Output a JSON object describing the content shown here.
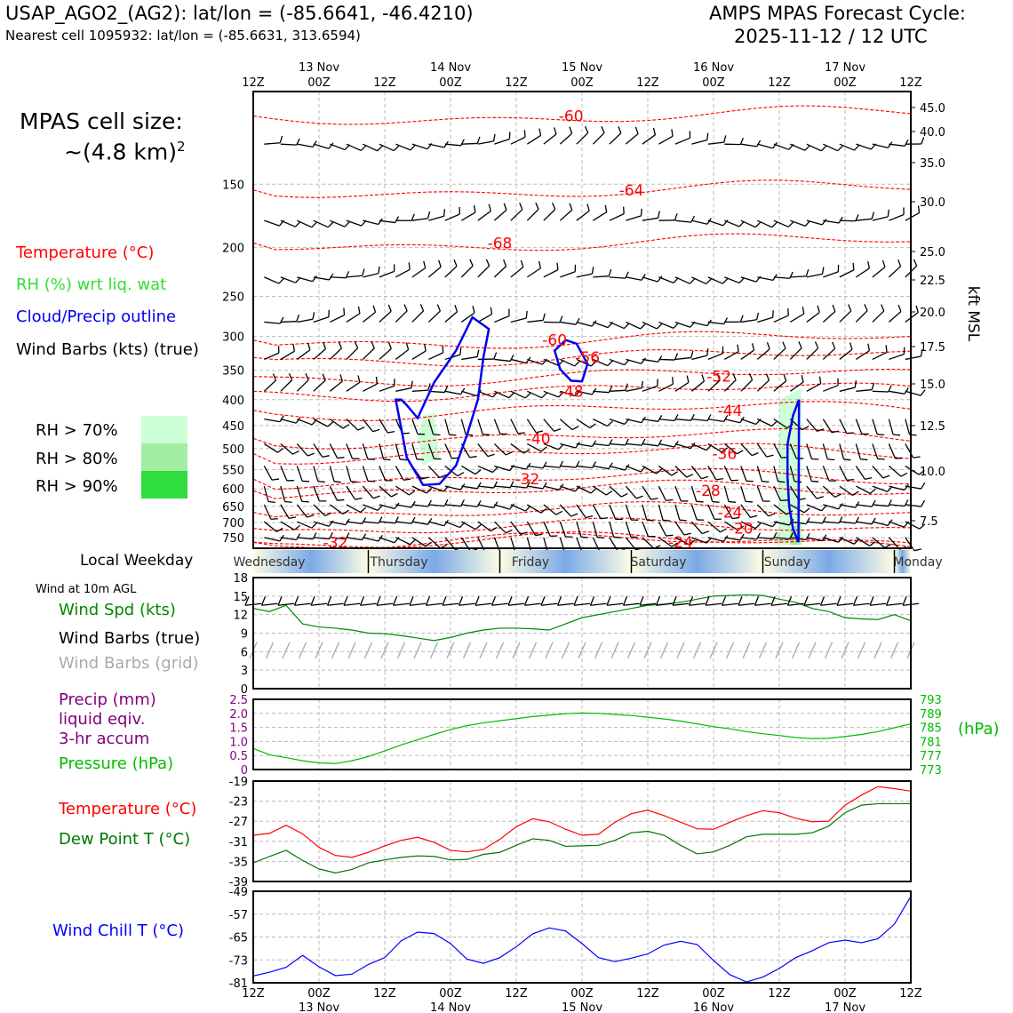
{
  "header": {
    "station": "USAP_AGO2_(AG2): lat/lon = (-85.6641, -46.4210)",
    "nearest": "Nearest cell 1095932: lat/lon = (-85.6631, 313.6594)",
    "cycle_line1": "AMPS MPAS Forecast Cycle:",
    "cycle_line2": "2025-11-12 / 12 UTC",
    "cell_size_line1": "MPAS cell size:",
    "cell_size_line2": "~(4.8 km)",
    "cell_size_sup": "2"
  },
  "legend": {
    "temperature": "Temperature (°C)",
    "rh": "RH (%) wrt liq. wat",
    "cloud": "Cloud/Precip outline",
    "wind": "Wind Barbs (kts) (true)",
    "rh_levels": [
      "RH > 70%",
      "RH > 80%",
      "RH > 90%"
    ],
    "rh_colors": [
      "#ccffd6",
      "#a2eea2",
      "#2fdd3e"
    ]
  },
  "colors": {
    "temperature": "#ff0000",
    "rh": "#33dd33",
    "cloud": "#0000ee",
    "wind_true": "#000000",
    "wind_grid": "#aaaaaa",
    "precip": "#800080",
    "pressure": "#00bb00",
    "dewpoint": "#007700",
    "windchill": "#0000ff"
  },
  "time_axis": {
    "hour_labels": [
      "12Z",
      "00Z",
      "12Z",
      "00Z",
      "12Z",
      "00Z",
      "12Z",
      "00Z",
      "12Z",
      "00Z",
      "12Z"
    ],
    "date_labels": [
      "13 Nov",
      "14 Nov",
      "15 Nov",
      "16 Nov",
      "17 Nov"
    ]
  },
  "weekday": {
    "label": "Local Weekday",
    "days": [
      "Wednesday",
      "Thursday",
      "Friday",
      "Saturday",
      "Sunday",
      "Monday"
    ]
  },
  "panels": {
    "wind10m": {
      "title": "Wind at 10m AGL",
      "labels": [
        "Wind Spd (kts)",
        "Wind Barbs (true)",
        "Wind Barbs (grid)"
      ]
    },
    "precip": {
      "labels": [
        "Precip (mm)",
        "liquid eqiv.",
        "3-hr accum",
        "Pressure (hPa)"
      ],
      "right_unit": "(hPa)"
    },
    "temp": {
      "labels": [
        "Temperature (°C)",
        "Dew Point T (°C)"
      ]
    },
    "windchill": {
      "label": "Wind Chill T (°C)"
    }
  },
  "chart_data": [
    {
      "type": "contour",
      "panel": "vertical_profile",
      "left_axis_ticks": [
        150,
        200,
        250,
        300,
        350,
        400,
        450,
        500,
        550,
        600,
        650,
        700,
        750
      ],
      "right_axis_ticks": [
        "45.0",
        "40.0",
        "35.0",
        "30.0",
        "25.0",
        "22.5",
        "20.0",
        "17.5",
        "15.0",
        "12.5",
        "10.0",
        "7.5"
      ],
      "right_axis_label": "kft MSL",
      "ylim_hpa": [
        775,
        100
      ],
      "temperature_contour_labels": [
        {
          "value": "-60",
          "time_h": 58,
          "p": 110
        },
        {
          "value": "-64",
          "time_h": 69,
          "p": 154
        },
        {
          "value": "-68",
          "time_h": 45,
          "p": 196
        },
        {
          "value": "-60",
          "time_h": 55,
          "p": 305
        },
        {
          "value": "-56",
          "time_h": 61,
          "p": 330
        },
        {
          "value": "-52",
          "time_h": 85,
          "p": 360
        },
        {
          "value": "-48",
          "time_h": 58,
          "p": 385
        },
        {
          "value": "-44",
          "time_h": 87,
          "p": 420
        },
        {
          "value": "-40",
          "time_h": 52,
          "p": 477
        },
        {
          "value": "-36",
          "time_h": 86,
          "p": 511
        },
        {
          "value": "-32",
          "time_h": 50,
          "p": 574
        },
        {
          "value": "-28",
          "time_h": 83,
          "p": 605
        },
        {
          "value": "-24",
          "time_h": 87,
          "p": 668
        },
        {
          "value": "-20",
          "time_h": 89,
          "p": 719
        },
        {
          "value": "-24",
          "time_h": 78,
          "p": 765
        },
        {
          "value": "-32",
          "time_h": 15,
          "p": 766
        }
      ],
      "cloud_outlines": [
        [
          [
            26,
            400
          ],
          [
            27,
            455
          ],
          [
            28,
            520
          ],
          [
            31,
            590
          ],
          [
            34,
            587
          ],
          [
            37,
            540
          ],
          [
            39,
            470
          ],
          [
            41,
            400
          ],
          [
            42,
            330
          ],
          [
            43,
            290
          ],
          [
            40,
            275
          ],
          [
            37,
            320
          ],
          [
            33,
            370
          ],
          [
            30,
            435
          ],
          [
            28,
            410
          ],
          [
            27,
            400
          ]
        ],
        [
          [
            55,
            320
          ],
          [
            56,
            348
          ],
          [
            58,
            367
          ],
          [
            60,
            368
          ],
          [
            61,
            340
          ],
          [
            59,
            310
          ],
          [
            57,
            305
          ]
        ],
        [
          [
            99.5,
            765
          ],
          [
            98.5,
            720
          ],
          [
            97.8,
            650
          ],
          [
            97.5,
            570
          ],
          [
            97.5,
            490
          ],
          [
            98.5,
            430
          ],
          [
            99.6,
            400
          ]
        ]
      ],
      "rh_shaded_regions": [
        {
          "level": "RH > 70%",
          "points": [
            [
              31,
              430
            ],
            [
              33,
              425
            ],
            [
              34,
              520
            ],
            [
              31,
              540
            ],
            [
              30,
              480
            ]
          ]
        },
        {
          "level": "RH > 70%",
          "points": [
            [
              96,
              400
            ],
            [
              100,
              380
            ],
            [
              100,
              775
            ],
            [
              95,
              775
            ],
            [
              96,
              700
            ]
          ]
        },
        {
          "level": "RH > 80%",
          "points": [
            [
              98,
              720
            ],
            [
              100,
              700
            ],
            [
              100,
              775
            ],
            [
              98,
              775
            ]
          ]
        }
      ]
    },
    {
      "type": "line",
      "panel": "wind_10m",
      "ylim": [
        0,
        18
      ],
      "y_ticks": [
        0,
        3,
        6,
        9,
        12,
        15,
        18
      ],
      "series": [
        {
          "name": "Wind Spd (kts)",
          "x": [
            0,
            3,
            6,
            9,
            12,
            15,
            18,
            21,
            24,
            27,
            30,
            33,
            36,
            39,
            42,
            45,
            48,
            51,
            54,
            57,
            60,
            63,
            66,
            69,
            72,
            75,
            78,
            81,
            84,
            87,
            90,
            93,
            96,
            99,
            102,
            105,
            108,
            111,
            114,
            117,
            120
          ],
          "values": [
            13,
            12.5,
            13.5,
            10.5,
            10,
            9.8,
            9.5,
            9,
            8.9,
            8.6,
            8.2,
            7.8,
            8.3,
            9,
            9.5,
            9.8,
            9.8,
            9.7,
            9.5,
            10.5,
            11.5,
            12,
            12.5,
            13,
            13.5,
            13.7,
            14,
            14.5,
            15,
            15.1,
            15.2,
            15.1,
            14.5,
            14,
            13,
            12.5,
            11.5,
            11.3,
            11.2,
            12,
            11
          ]
        }
      ]
    },
    {
      "type": "line",
      "panel": "precip_pressure",
      "left_ylim": [
        0,
        2.5
      ],
      "left_y_ticks": [
        "0",
        "0.5",
        "1.0",
        "1.5",
        "2.0",
        "2.5"
      ],
      "right_ylim": [
        773,
        793
      ],
      "right_y_ticks": [
        "773",
        "777",
        "781",
        "785",
        "789",
        "793"
      ],
      "series": [
        {
          "name": "Pressure (hPa)",
          "x": [
            0,
            3,
            6,
            9,
            12,
            15,
            18,
            21,
            24,
            27,
            30,
            33,
            36,
            39,
            42,
            45,
            48,
            51,
            54,
            57,
            60,
            63,
            66,
            69,
            72,
            75,
            78,
            81,
            84,
            87,
            90,
            93,
            96,
            99,
            102,
            105,
            108,
            111,
            114,
            117,
            120
          ],
          "values": [
            779,
            777.2,
            776.4,
            775.5,
            774.9,
            774.7,
            775.5,
            776.7,
            778.3,
            780,
            781.5,
            783,
            784.4,
            785.5,
            786.3,
            786.9,
            787.5,
            788.1,
            788.5,
            788.9,
            789.1,
            789,
            788.7,
            788.4,
            787.9,
            787.4,
            786.8,
            786,
            785.2,
            784.6,
            783.8,
            783.2,
            782.7,
            782.1,
            781.8,
            781.9,
            782.4,
            783,
            783.8,
            784.9,
            786
          ]
        }
      ]
    },
    {
      "type": "line",
      "panel": "temperature_dewpoint",
      "ylim": [
        -39,
        -19
      ],
      "y_ticks": [
        -19,
        -23,
        -27,
        -31,
        -35,
        -39
      ],
      "series": [
        {
          "name": "Temperature (°C)",
          "x": [
            0,
            3,
            6,
            9,
            12,
            15,
            18,
            21,
            24,
            27,
            30,
            33,
            36,
            39,
            42,
            45,
            48,
            51,
            54,
            57,
            60,
            63,
            66,
            69,
            72,
            75,
            78,
            81,
            84,
            87,
            90,
            93,
            96,
            99,
            102,
            105,
            108,
            111,
            114,
            117,
            120
          ],
          "values": [
            -29.8,
            -29.4,
            -27.8,
            -29.5,
            -32.2,
            -33.8,
            -34.2,
            -33.2,
            -31.9,
            -30.8,
            -30.2,
            -31.2,
            -32.8,
            -33.1,
            -32.6,
            -30.6,
            -28.1,
            -26.5,
            -27.1,
            -28.6,
            -29.8,
            -29.6,
            -27.2,
            -25.5,
            -24.8,
            -25.9,
            -27.2,
            -28.5,
            -28.6,
            -27.2,
            -25.9,
            -24.9,
            -25.3,
            -26.4,
            -27.1,
            -27,
            -23.8,
            -21.8,
            -20.1,
            -20.5,
            -21
          ]
        },
        {
          "name": "Dew Point T (°C)",
          "x": [
            0,
            3,
            6,
            9,
            12,
            15,
            18,
            21,
            24,
            27,
            30,
            33,
            36,
            39,
            42,
            45,
            48,
            51,
            54,
            57,
            60,
            63,
            66,
            69,
            72,
            75,
            78,
            81,
            84,
            87,
            90,
            93,
            96,
            99,
            102,
            105,
            108,
            111,
            114,
            117,
            120
          ],
          "values": [
            -35.3,
            -34,
            -32.8,
            -34.8,
            -36.5,
            -37.3,
            -36.6,
            -35.3,
            -34.7,
            -34.2,
            -33.9,
            -34,
            -34.7,
            -34.6,
            -33.6,
            -33.2,
            -31.8,
            -30.5,
            -30.8,
            -32,
            -31.9,
            -31.8,
            -30.8,
            -29.3,
            -29,
            -29.8,
            -31.8,
            -33.5,
            -33.1,
            -31.8,
            -30.1,
            -29.6,
            -29.6,
            -29.6,
            -29.3,
            -28,
            -25.3,
            -23.8,
            -23.5,
            -23.5,
            -23.5
          ]
        }
      ]
    },
    {
      "type": "line",
      "panel": "wind_chill",
      "ylim": [
        -81,
        -49
      ],
      "y_ticks": [
        -49,
        -57,
        -65,
        -73,
        -81
      ],
      "series": [
        {
          "name": "Wind Chill T (°C)",
          "x": [
            0,
            3,
            6,
            9,
            12,
            15,
            18,
            21,
            24,
            27,
            30,
            33,
            36,
            39,
            42,
            45,
            48,
            51,
            54,
            57,
            60,
            63,
            66,
            69,
            72,
            75,
            78,
            81,
            84,
            87,
            90,
            93,
            96,
            99,
            102,
            105,
            108,
            111,
            114,
            117,
            120
          ],
          "values": [
            -78.6,
            -77.3,
            -75.6,
            -71.4,
            -75.4,
            -78.5,
            -78,
            -74.6,
            -72.2,
            -66.3,
            -63.3,
            -63.8,
            -67.3,
            -72.7,
            -74.2,
            -72.2,
            -68.4,
            -63.9,
            -61.8,
            -62.9,
            -67.3,
            -72.2,
            -73.6,
            -72.4,
            -70.9,
            -67.8,
            -66.5,
            -67.6,
            -73.2,
            -78.2,
            -80.7,
            -79,
            -76,
            -72.2,
            -69.8,
            -67,
            -66.1,
            -67,
            -65.6,
            -60.5,
            -50.8
          ]
        }
      ]
    }
  ]
}
